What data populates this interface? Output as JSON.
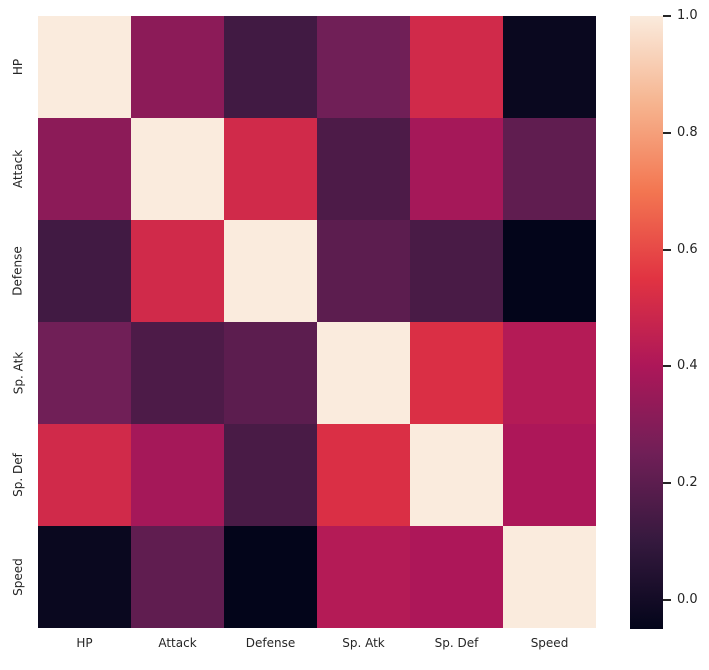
{
  "figure": {
    "background_color": "#ffffff",
    "text_color": "#262626"
  },
  "chart_data": {
    "type": "heatmap",
    "title": "",
    "xlabel": "",
    "ylabel": "",
    "categories": [
      "HP",
      "Attack",
      "Defense",
      "Sp. Atk",
      "Sp. Def",
      "Speed"
    ],
    "matrix": [
      [
        1.0,
        0.32,
        0.13,
        0.25,
        0.5,
        -0.03
      ],
      [
        0.32,
        1.0,
        0.5,
        0.16,
        0.38,
        0.21
      ],
      [
        0.13,
        0.5,
        1.0,
        0.2,
        0.15,
        -0.05
      ],
      [
        0.25,
        0.16,
        0.2,
        1.0,
        0.53,
        0.42
      ],
      [
        0.5,
        0.38,
        0.15,
        0.53,
        1.0,
        0.4
      ],
      [
        -0.03,
        0.21,
        -0.05,
        0.42,
        0.4,
        1.0
      ]
    ],
    "vmin": -0.05,
    "vmax": 1.0,
    "grid": false,
    "colormap": "rocket",
    "colormap_anchors": [
      {
        "f": 0.0,
        "color": "#03051A"
      },
      {
        "f": 0.143,
        "color": "#35193E"
      },
      {
        "f": 0.286,
        "color": "#701F57"
      },
      {
        "f": 0.429,
        "color": "#AD1759"
      },
      {
        "f": 0.571,
        "color": "#E13342"
      },
      {
        "f": 0.714,
        "color": "#F37651"
      },
      {
        "f": 0.857,
        "color": "#F6B48F"
      },
      {
        "f": 1.0,
        "color": "#FAEBDD"
      }
    ],
    "colorbar": {
      "position": "right",
      "ticks": [
        0.0,
        0.2,
        0.4,
        0.6,
        0.8,
        1.0
      ],
      "tick_labels": [
        "0.0",
        "0.2",
        "0.4",
        "0.6",
        "0.8",
        "1.0"
      ]
    }
  }
}
